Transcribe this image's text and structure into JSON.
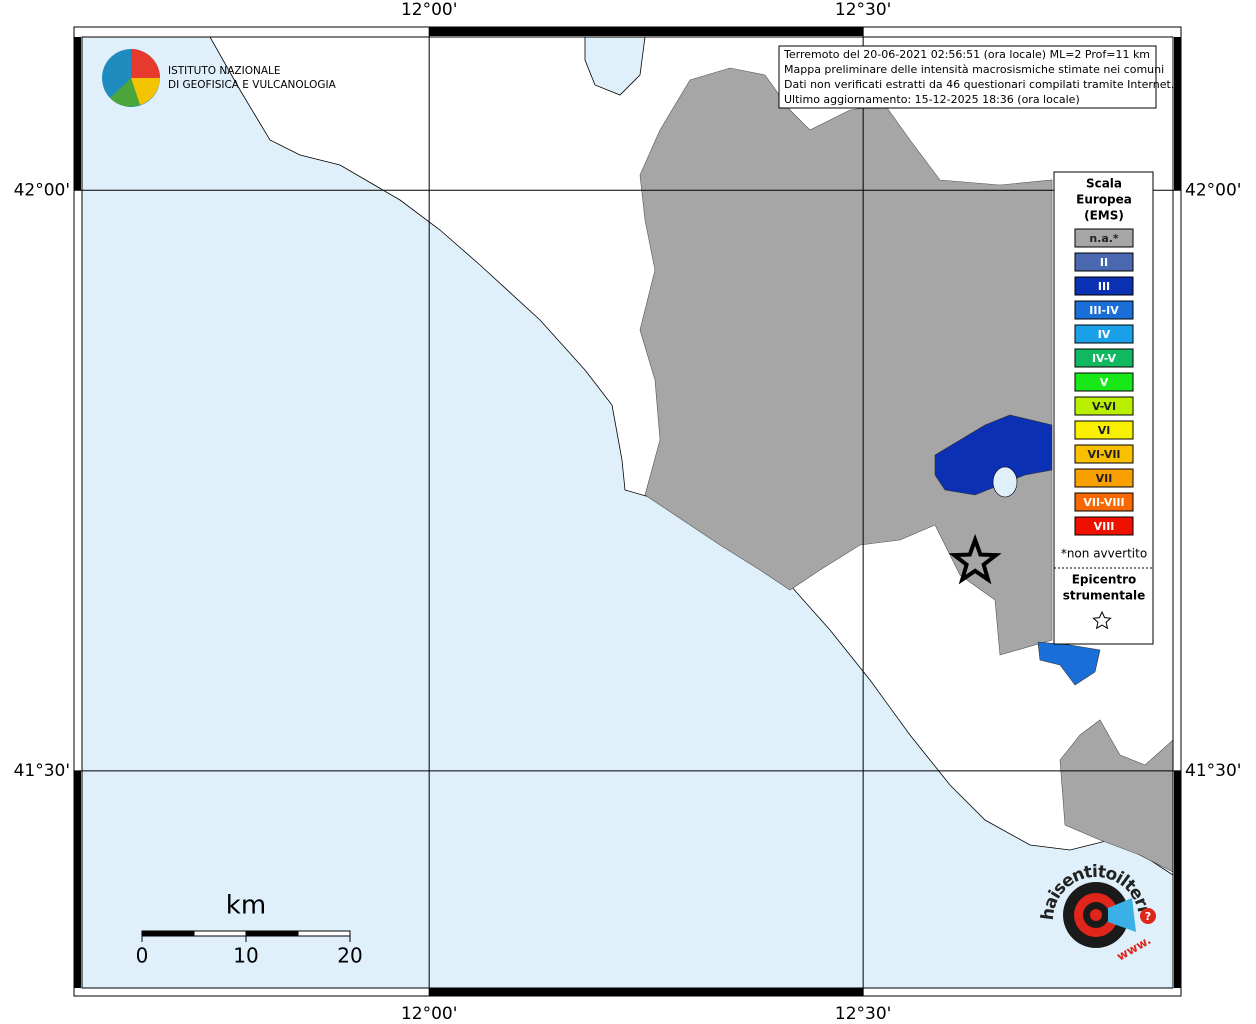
{
  "map": {
    "lon_range": [
      11.6,
      12.857
    ],
    "lat_range": [
      42.132,
      41.313
    ],
    "lon_ticks": [
      {
        "value": 12,
        "label": "12°00'"
      },
      {
        "value": 12.5,
        "label": "12°30'"
      }
    ],
    "lat_ticks": [
      {
        "value": 42,
        "label": "42°00'"
      },
      {
        "value": 41.5,
        "label": "41°30'"
      }
    ],
    "info_lines": [
      "Terremoto del 20-06-2021 02:56:51 (ora locale) ML=2 Prof=11 km",
      "Mappa preliminare delle intensità macrosismiche stimate nei comuni",
      "Dati non verificati estratti da 46 questionari compilati tramite Internet.",
      "Ultimo aggiornamento: 15-12-2025 18:36 (ora locale)"
    ],
    "institute": [
      "ISTITUTO NAZIONALE",
      "DI GEOFISICA E VULCANOLOGIA"
    ],
    "epicenter": {
      "lon": 12.629,
      "lat": 41.68
    }
  },
  "legend": {
    "title": [
      "Scala",
      "Europea",
      "(EMS)"
    ],
    "items": [
      {
        "label": "n.a.*",
        "color": "#a6a6a6"
      },
      {
        "label": "II",
        "color": "#4a68b0"
      },
      {
        "label": "III",
        "color": "#0c30b4"
      },
      {
        "label": "III-IV",
        "color": "#1a6ed8"
      },
      {
        "label": "IV",
        "color": "#1aa0e8"
      },
      {
        "label": "IV-V",
        "color": "#10b860"
      },
      {
        "label": "V",
        "color": "#18e818"
      },
      {
        "label": "V-VI",
        "color": "#b8f000"
      },
      {
        "label": "VI",
        "color": "#f8f000"
      },
      {
        "label": "VI-VII",
        "color": "#f8c000"
      },
      {
        "label": "VII",
        "color": "#f8a000"
      },
      {
        "label": "VII-VIII",
        "color": "#f86800"
      },
      {
        "label": "VIII",
        "color": "#f01000"
      }
    ],
    "note": "*non avvertito",
    "epicenter_title": [
      "Epicentro",
      "strumentale"
    ]
  },
  "scale_bar": {
    "unit": "km",
    "ticks": [
      0,
      10,
      20
    ]
  },
  "badge": {
    "site": "haisentitoilterremoto.it",
    "www": "www.",
    "mark": "?"
  }
}
